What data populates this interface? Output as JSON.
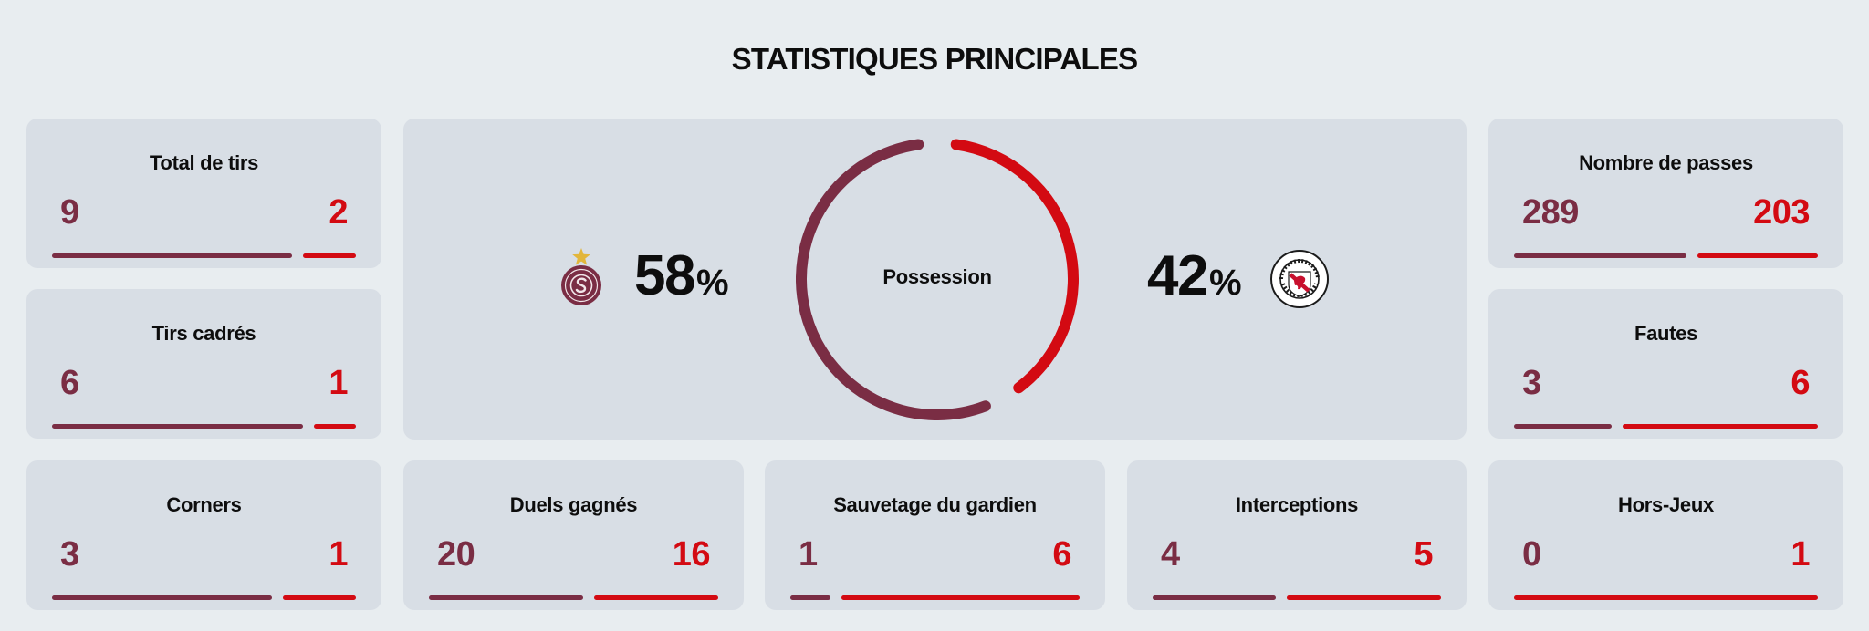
{
  "page": {
    "title": "STATISTIQUES PRINCIPALES"
  },
  "teams": {
    "home_crest_icon": "servette-fc-crest-icon",
    "away_crest_icon": "fc-winterthur-crest-icon",
    "home_color": "#7a2d44",
    "away_color": "#d30a12"
  },
  "possession": {
    "label": "Possession",
    "home_value": "58",
    "away_value": "42",
    "unit": "%",
    "home_fraction": 0.58,
    "away_fraction": 0.42
  },
  "stats": [
    {
      "label": "Total de tirs",
      "home": "9",
      "away": "2"
    },
    {
      "label": "Tirs cadrés",
      "home": "6",
      "away": "1"
    },
    {
      "label": "Corners",
      "home": "3",
      "away": "1"
    },
    {
      "label": "Duels gagnés",
      "home": "20",
      "away": "16"
    },
    {
      "label": "Sauvetage du gardien",
      "home": "1",
      "away": "6"
    },
    {
      "label": "Interceptions",
      "home": "4",
      "away": "5"
    },
    {
      "label": "Hors-Jeux",
      "home": "0",
      "away": "1"
    },
    {
      "label": "Nombre de passes",
      "home": "289",
      "away": "203"
    },
    {
      "label": "Fautes",
      "home": "3",
      "away": "6"
    }
  ]
}
